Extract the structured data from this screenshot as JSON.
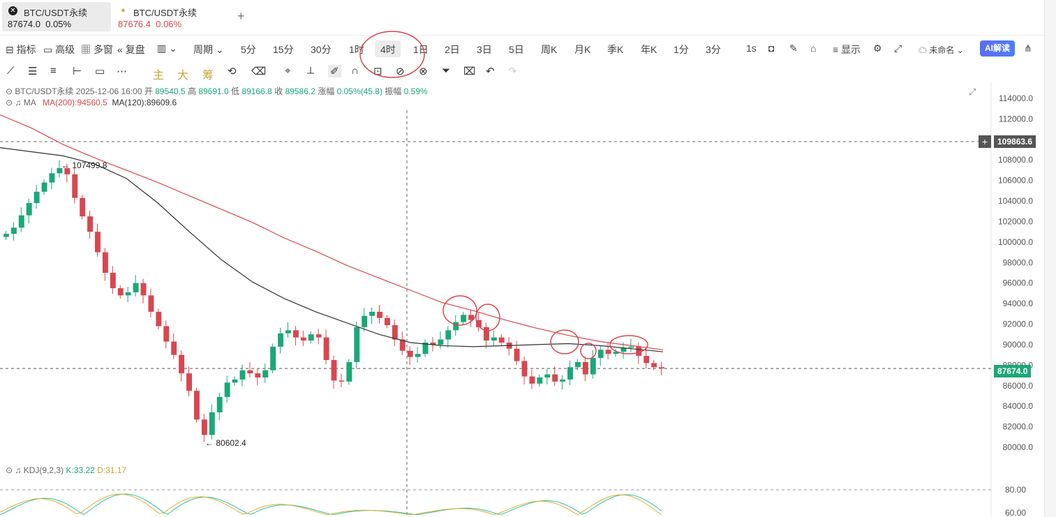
{
  "tabs": [
    {
      "title": "BTC/USDT永续",
      "price": "87674.0",
      "change": "0.05%"
    },
    {
      "title": "BTC/USDT永续",
      "price": "87676.4",
      "change": "0.06%"
    }
  ],
  "toolbar": {
    "indicators": "指标",
    "advanced": "高级",
    "multiwin": "多窗",
    "replay": "复盘",
    "period": "周期",
    "intervals": [
      "5分",
      "15分",
      "30分",
      "1时",
      "4时",
      "1日",
      "2日",
      "3日",
      "5日",
      "周K",
      "月K",
      "季K",
      "年K",
      "1分",
      "3分",
      "1s"
    ],
    "selected_interval": "4时",
    "display": "显示",
    "layout_name": "未命名",
    "ai": "AI解读"
  },
  "drawbar": {
    "main": "主",
    "big": "大",
    "chip": "筹"
  },
  "legend": {
    "symbol": "BTC/USDT永续",
    "datetime": "2025-12-06 16:00",
    "open_label": "开",
    "open": "89540.5",
    "high_label": "高",
    "high": "89691.0",
    "low_label": "低",
    "low": "89166.8",
    "close_label": "收",
    "close": "89586.2",
    "change_label": "涨幅",
    "change": "0.05%(45.8)",
    "amp_label": "振幅",
    "amp": "0.59%",
    "ma_label": "MA",
    "ma200": "MA(200):94560.5",
    "ma120": "MA(120):89609.6",
    "kdj_label": "KDJ(9,2,3)",
    "kdj_k": "K:33.22",
    "kdj_d": "D:31.17"
  },
  "annotations": {
    "high": "107499.8",
    "low": "80602.4"
  },
  "price_axis": {
    "ticks": [
      114000,
      112000,
      110000,
      108000,
      106000,
      104000,
      102000,
      100000,
      98000,
      96000,
      94000,
      92000,
      90000,
      88000,
      86000,
      84000,
      82000,
      80000
    ],
    "crosshair_price": "109863.6",
    "last_price": "87674.0",
    "kdj_ticks": [
      "80.00",
      "60.00"
    ]
  },
  "colors": {
    "up": "#1aa876",
    "down": "#d9464f",
    "ma200": "#d9464f",
    "ma120": "#333333",
    "circle": "#d9464f",
    "kdj_k": "#2fbfa6",
    "kdj_d": "#e0b030"
  },
  "chart_data": {
    "type": "candlestick",
    "interval": "4时",
    "ylim": [
      79000,
      115000
    ],
    "close_series": [
      100800,
      101400,
      102600,
      103800,
      104900,
      105800,
      106700,
      107200,
      106600,
      104300,
      102500,
      101000,
      99000,
      97000,
      95500,
      94800,
      95100,
      96000,
      94800,
      93200,
      91800,
      90300,
      89000,
      87200,
      85500,
      82700,
      81200,
      83400,
      84900,
      86300,
      86600,
      87500,
      87200,
      86800,
      87500,
      89800,
      91100,
      91400,
      90700,
      90400,
      91000,
      90700,
      88500,
      86500,
      86400,
      88300,
      91700,
      92800,
      93200,
      92600,
      91900,
      90500,
      89400,
      88800,
      89100,
      90200,
      90000,
      90500,
      91400,
      92200,
      92900,
      92400,
      91700,
      90400,
      90700,
      90200,
      89600,
      88400,
      86900,
      86200,
      86800,
      87100,
      86400,
      86600,
      87800,
      88300,
      87100,
      88700,
      89500,
      89100,
      89300,
      89700,
      89800,
      88900,
      88200,
      87800,
      87674
    ],
    "series": [
      {
        "name": "MA(200)",
        "values": [
          112400,
          111100,
          109500,
          108200,
          107000,
          105800,
          104500,
          103200,
          101900,
          100400,
          99100,
          97700,
          96500,
          95300,
          94100,
          93300,
          92400,
          91600,
          90900,
          90300,
          89900,
          89500
        ]
      },
      {
        "name": "MA(120)",
        "values": [
          109200,
          108800,
          108400,
          107600,
          106200,
          103800,
          101000,
          98300,
          96100,
          94500,
          93200,
          92100,
          91000,
          90200,
          89900,
          89800,
          89900,
          90000,
          90100,
          89900,
          89600,
          89300
        ]
      }
    ],
    "kdj": {
      "k": "33.22",
      "d": "31.17"
    }
  }
}
